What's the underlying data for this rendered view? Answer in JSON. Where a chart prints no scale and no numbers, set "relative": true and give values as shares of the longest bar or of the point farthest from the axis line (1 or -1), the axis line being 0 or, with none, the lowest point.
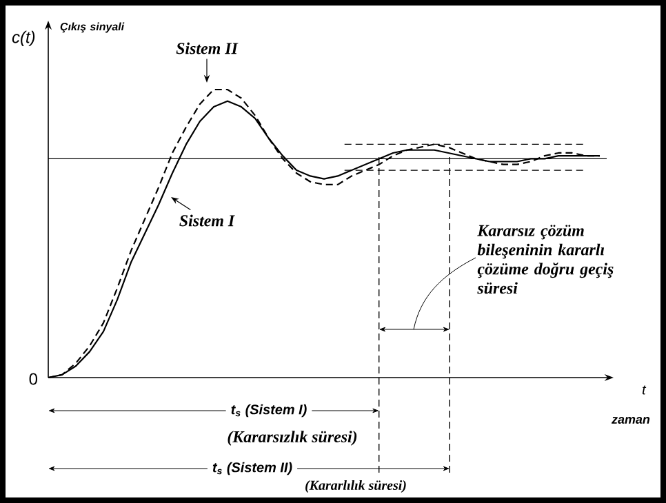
{
  "chart_data": {
    "type": "line",
    "relative": true,
    "ylabel": "c(t)",
    "xlabel": "zaman",
    "categories": [
      null,
      null,
      null,
      null,
      null,
      null,
      null,
      null,
      null,
      null,
      null,
      null,
      null,
      null,
      null,
      null,
      null,
      null,
      null,
      null,
      null,
      null,
      null,
      null,
      null,
      null,
      null,
      null,
      null,
      null,
      null,
      null,
      null,
      null,
      null,
      null,
      null,
      null,
      null,
      null,
      null
    ],
    "series": [
      {
        "name": "Sistem I",
        "color": "#000000",
        "line_style": "solid",
        "values": [
          0,
          0.01,
          0.04,
          0.09,
          0.16,
          0.27,
          0.4,
          0.5,
          0.6,
          0.71,
          0.81,
          0.89,
          0.94,
          0.96,
          0.94,
          0.9,
          0.83,
          0.77,
          0.72,
          0.7,
          0.69,
          0.7,
          0.72,
          0.74,
          0.76,
          0.78,
          0.79,
          0.79,
          0.79,
          0.78,
          0.77,
          0.76,
          0.75,
          0.75,
          0.75,
          0.76,
          0.76,
          0.77,
          0.77,
          0.77,
          0.77
        ]
      },
      {
        "name": "Sistem II",
        "color": "#000000",
        "line_style": "dashed",
        "values": [
          0,
          0.01,
          0.05,
          0.11,
          0.19,
          0.31,
          0.44,
          0.55,
          0.66,
          0.78,
          0.87,
          0.95,
          1.0,
          1.0,
          0.97,
          0.91,
          0.83,
          0.76,
          0.71,
          0.68,
          0.67,
          0.67,
          0.7,
          0.72,
          0.74,
          0.77,
          0.79,
          0.8,
          0.81,
          0.8,
          0.78,
          0.76,
          0.75,
          0.74,
          0.74,
          0.75,
          0.77,
          0.78,
          0.78,
          0.77,
          0.77
        ]
      }
    ],
    "ref_lines": [
      {
        "axis": "y",
        "value": 0.76
      },
      {
        "axis": "y",
        "value": 0.72,
        "line_style": "dashed"
      },
      {
        "axis": "y",
        "value": 0.81,
        "line_style": "dashed"
      }
    ],
    "annotations": [
      "Çıkış sinyali",
      "0",
      "t",
      "t$_{s}$  (Sistem I)",
      "(Kararsızlık süresi)",
      "t$_{s}$  (Sistem II)",
      "(Kararlılık süresi)",
      "Kararsız çözüm bileşeninin kararlı çözüme doğru geçiş süresi"
    ]
  }
}
